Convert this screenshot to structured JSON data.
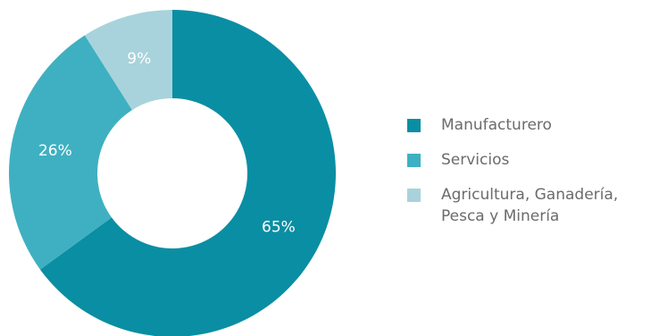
{
  "chart_data": {
    "type": "pie",
    "donut": true,
    "categories": [
      "Manufacturero",
      "Servicios",
      "Agricultura, Ganadería, Pesca y Minería"
    ],
    "values": [
      65,
      26,
      9
    ],
    "value_labels": [
      "65%",
      "26%",
      "9%"
    ],
    "colors": [
      "#0a8ea3",
      "#3fb0c1",
      "#a8d3dc"
    ],
    "legend_position": "right"
  },
  "legend": {
    "items": [
      {
        "label": "Manufacturero",
        "color": "#0a8ea3"
      },
      {
        "label": "Servicios",
        "color": "#3fb0c1"
      },
      {
        "label": "Agricultura, Ganadería, Pesca y Minería",
        "color": "#a8d3dc"
      }
    ]
  }
}
